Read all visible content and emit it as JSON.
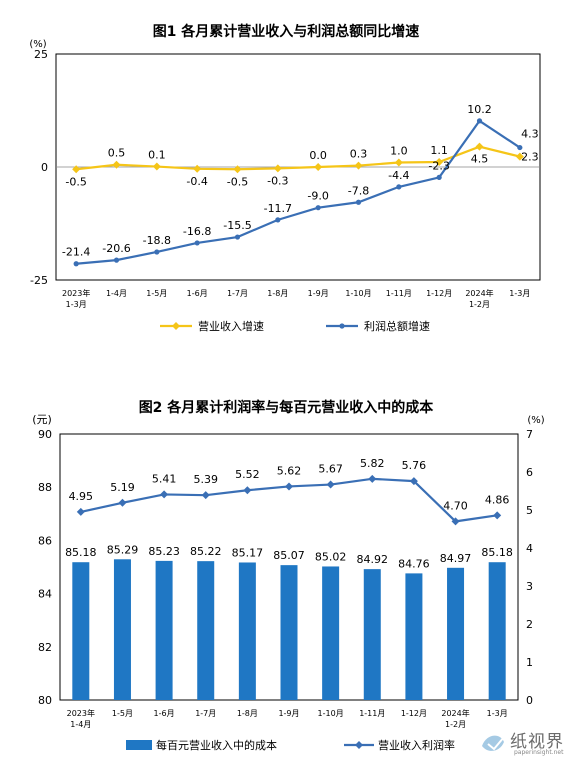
{
  "chart_data": [
    {
      "type": "line",
      "title": "图1  各月累计营业收入与利润总额同比增速",
      "yunit": "(%)",
      "ylim": [
        -25,
        25
      ],
      "yticks": [
        "25",
        "0",
        "-25"
      ],
      "categories": [
        [
          "2023年",
          "1-3月"
        ],
        [
          "1-4月"
        ],
        [
          "1-5月"
        ],
        [
          "1-6月"
        ],
        [
          "1-7月"
        ],
        [
          "1-8月"
        ],
        [
          "1-9月"
        ],
        [
          "1-10月"
        ],
        [
          "1-11月"
        ],
        [
          "1-12月"
        ],
        [
          "2024年",
          "1-2月"
        ],
        [
          "1-3月"
        ]
      ],
      "series": [
        {
          "name": "营业收入增速",
          "color": "#F5C518",
          "values": [
            -0.5,
            0.5,
            0.1,
            -0.4,
            -0.5,
            -0.3,
            0.0,
            0.3,
            1.0,
            1.1,
            4.5,
            2.3
          ],
          "labels": [
            "-0.5",
            "0.5",
            "0.1",
            "-0.4",
            "-0.5",
            "-0.3",
            "0.0",
            "0.3",
            "1.0",
            "1.1",
            "4.5",
            "2.3"
          ]
        },
        {
          "name": "利润总额增速",
          "color": "#3A6FB5",
          "values": [
            -21.4,
            -20.6,
            -18.8,
            -16.8,
            -15.5,
            -11.7,
            -9.0,
            -7.8,
            -4.4,
            -2.3,
            10.2,
            4.3
          ],
          "labels": [
            "-21.4",
            "-20.6",
            "-18.8",
            "-16.8",
            "-15.5",
            "-11.7",
            "-9.0",
            "-7.8",
            "-4.4",
            "-2.3",
            "10.2",
            "4.3"
          ]
        }
      ],
      "legend": "bottom"
    },
    {
      "type": "bar",
      "title": "图2  各月累计利润率与每百元营业收入中的成本",
      "y_left_unit": "(元)",
      "y_right_unit": "(%)",
      "ylim_left": [
        80,
        90
      ],
      "yticks_left": [
        "90",
        "88",
        "86",
        "84",
        "82",
        "80"
      ],
      "ylim_right": [
        0,
        7
      ],
      "yticks_right": [
        "7",
        "6",
        "5",
        "4",
        "3",
        "2",
        "1",
        "0"
      ],
      "categories": [
        [
          "2023年",
          "1-4月"
        ],
        [
          "1-5月"
        ],
        [
          "1-6月"
        ],
        [
          "1-7月"
        ],
        [
          "1-8月"
        ],
        [
          "1-9月"
        ],
        [
          "1-10月"
        ],
        [
          "1-11月"
        ],
        [
          "1-12月"
        ],
        [
          "2024年",
          "1-2月"
        ],
        [
          "1-3月"
        ]
      ],
      "series": [
        {
          "name": "每百元营业收入中的成本",
          "type": "bar",
          "axis": "left",
          "color": "#1F77C4",
          "values": [
            85.18,
            85.29,
            85.23,
            85.22,
            85.17,
            85.07,
            85.02,
            84.92,
            84.76,
            84.97,
            85.18
          ],
          "labels": [
            "85.18",
            "85.29",
            "85.23",
            "85.22",
            "85.17",
            "85.07",
            "85.02",
            "84.92",
            "84.76",
            "84.97",
            "85.18"
          ]
        },
        {
          "name": "营业收入利润率",
          "type": "line",
          "axis": "right",
          "color": "#3A6FB5",
          "values": [
            4.95,
            5.19,
            5.41,
            5.39,
            5.52,
            5.62,
            5.67,
            5.82,
            5.76,
            4.7,
            4.86
          ],
          "labels": [
            "4.95",
            "5.19",
            "5.41",
            "5.39",
            "5.52",
            "5.62",
            "5.67",
            "5.82",
            "5.76",
            "4.70",
            "4.86"
          ]
        }
      ],
      "legend": "bottom"
    }
  ],
  "watermark": {
    "name": "纸视界",
    "url": "paperinsight.net"
  }
}
